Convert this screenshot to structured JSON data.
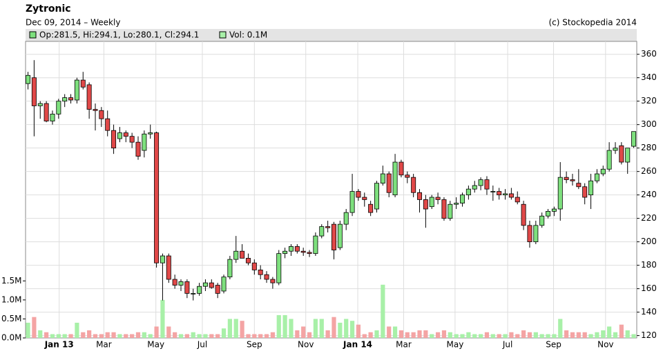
{
  "chart_data": {
    "type": "candlestick",
    "title": "Zytronic",
    "subtitle": "Dec 09, 2014 – Weekly",
    "credit": "(c) Stockopedia 2014",
    "legend": [
      "Op:281.5, Hi:294.1, Lo:280.1, Cl:294.1",
      "Vol: 0.1M"
    ],
    "up_color": "#7ee07e",
    "down_color": "#e04848",
    "vol_up_color": "#a8f0a8",
    "vol_down_color": "#f4a4a4",
    "open": [
      335,
      340,
      316,
      318,
      303,
      309,
      320,
      323,
      321,
      338,
      334,
      313,
      312,
      305,
      295,
      288,
      293,
      290,
      285,
      278,
      292,
      293,
      182,
      188,
      168,
      163,
      166,
      156,
      156,
      162,
      165,
      163,
      158,
      170,
      185,
      192,
      186,
      182,
      176,
      172,
      168,
      165,
      190,
      192,
      196,
      192,
      191,
      190,
      205,
      213,
      215,
      195,
      215,
      225,
      243,
      238,
      232,
      228,
      250,
      258,
      240,
      268,
      257,
      255,
      242,
      236,
      230,
      238,
      236,
      220,
      232,
      233,
      240,
      245,
      248,
      253,
      243,
      243,
      240,
      241,
      238,
      232,
      214,
      200,
      214,
      222,
      226,
      228,
      255,
      253,
      250,
      247,
      240,
      252,
      258,
      262,
      278,
      282,
      268,
      281.5
    ],
    "high": [
      345,
      355,
      320,
      320,
      312,
      322,
      326,
      326,
      340,
      345,
      336,
      318,
      315,
      312,
      300,
      298,
      295,
      293,
      290,
      295,
      300,
      294,
      190,
      190,
      172,
      168,
      168,
      160,
      165,
      168,
      168,
      165,
      172,
      188,
      205,
      198,
      190,
      185,
      180,
      175,
      170,
      193,
      195,
      198,
      198,
      195,
      193,
      208,
      215,
      218,
      217,
      218,
      228,
      258,
      245,
      242,
      235,
      252,
      265,
      260,
      275,
      270,
      260,
      258,
      245,
      240,
      240,
      242,
      238,
      235,
      238,
      242,
      248,
      252,
      255,
      256,
      248,
      246,
      245,
      246,
      243,
      235,
      218,
      218,
      225,
      228,
      230,
      268,
      260,
      258,
      262,
      250,
      258,
      262,
      265,
      285,
      285,
      285,
      280,
      294.1
    ],
    "low": [
      330,
      290,
      305,
      302,
      300,
      305,
      315,
      318,
      318,
      330,
      305,
      295,
      298,
      290,
      275,
      285,
      285,
      280,
      270,
      272,
      288,
      178,
      150,
      165,
      160,
      158,
      152,
      150,
      154,
      158,
      160,
      152,
      156,
      168,
      182,
      186,
      180,
      172,
      168,
      165,
      160,
      163,
      186,
      188,
      190,
      188,
      187,
      188,
      203,
      208,
      185,
      193,
      210,
      222,
      235,
      230,
      222,
      225,
      248,
      238,
      238,
      255,
      250,
      238,
      225,
      212,
      228,
      232,
      218,
      218,
      228,
      230,
      236,
      242,
      244,
      240,
      235,
      236,
      236,
      236,
      232,
      210,
      195,
      198,
      212,
      220,
      222,
      218,
      250,
      248,
      245,
      232,
      228,
      250,
      256,
      260,
      275,
      266,
      258,
      280.1
    ],
    "close": [
      342,
      316,
      318,
      303,
      309,
      320,
      323,
      321,
      338,
      332,
      313,
      312,
      305,
      295,
      280,
      293,
      290,
      285,
      273,
      292,
      293,
      182,
      188,
      168,
      163,
      166,
      156,
      156,
      162,
      165,
      161,
      156,
      170,
      185,
      192,
      186,
      182,
      176,
      172,
      168,
      165,
      190,
      192,
      196,
      192,
      191,
      190,
      205,
      213,
      212,
      193,
      215,
      225,
      243,
      238,
      236,
      225,
      250,
      258,
      242,
      268,
      257,
      255,
      242,
      236,
      228,
      238,
      236,
      220,
      232,
      233,
      240,
      245,
      248,
      253,
      245,
      243,
      240,
      241,
      238,
      234,
      214,
      200,
      214,
      222,
      226,
      228,
      255,
      253,
      252,
      247,
      238,
      252,
      258,
      262,
      278,
      280,
      268,
      280,
      294.1
    ],
    "volume": [
      0.4,
      0.55,
      0.2,
      0.15,
      0.1,
      0.1,
      0.1,
      0.1,
      0.4,
      0.15,
      0.2,
      0.1,
      0.1,
      0.15,
      0.15,
      0.1,
      0.1,
      0.1,
      0.15,
      0.15,
      0.1,
      0.3,
      1.0,
      0.3,
      0.15,
      0.1,
      0.1,
      0.15,
      0.1,
      0.1,
      0.1,
      0.1,
      0.25,
      0.5,
      0.5,
      0.45,
      0.1,
      0.1,
      0.1,
      0.1,
      0.15,
      0.6,
      0.6,
      0.5,
      0.2,
      0.3,
      0.15,
      0.5,
      0.5,
      0.2,
      0.55,
      0.4,
      0.5,
      0.45,
      0.35,
      0.1,
      0.15,
      0.2,
      1.4,
      0.3,
      0.3,
      0.2,
      0.15,
      0.15,
      0.2,
      0.2,
      0.1,
      0.15,
      0.2,
      0.15,
      0.1,
      0.1,
      0.15,
      0.1,
      0.1,
      0.15,
      0.1,
      0.1,
      0.1,
      0.15,
      0.1,
      0.2,
      0.15,
      0.15,
      0.1,
      0.1,
      0.1,
      0.5,
      0.2,
      0.15,
      0.15,
      0.15,
      0.1,
      0.15,
      0.2,
      0.3,
      0.15,
      0.35,
      0.2,
      0.1
    ],
    "xlim": [
      -0.4,
      99.5
    ],
    "xticks": [
      {
        "value": 5.1,
        "label": "Jan 13"
      },
      {
        "value": 12.4,
        "label": "Mar"
      },
      {
        "value": 20.9,
        "label": "May"
      },
      {
        "value": 28.5,
        "label": "Jul"
      },
      {
        "value": 37,
        "label": "Sep"
      },
      {
        "value": 45.4,
        "label": "Nov"
      },
      {
        "value": 53.9,
        "label": "Jan 14"
      },
      {
        "value": 61.4,
        "label": "Mar"
      },
      {
        "value": 69.8,
        "label": "May"
      },
      {
        "value": 78.4,
        "label": "Jul"
      },
      {
        "value": 85.9,
        "label": "Sep"
      },
      {
        "value": 94.4,
        "label": "Nov"
      }
    ],
    "ylim": [
      118,
      371
    ],
    "yticks": [
      120,
      140,
      160,
      180,
      200,
      220,
      240,
      260,
      280,
      300,
      320,
      340,
      360
    ],
    "vlim": [
      0,
      7.8
    ],
    "vticks": [
      {
        "value": 0,
        "label": "0.0M"
      },
      {
        "value": 0.5,
        "label": "0.5M"
      },
      {
        "value": 1.0,
        "label": "1.0M"
      },
      {
        "value": 1.5,
        "label": "1.5M"
      }
    ],
    "grid": true
  }
}
